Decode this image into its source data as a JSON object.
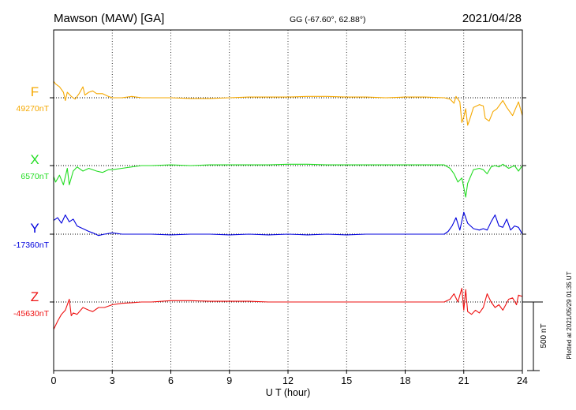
{
  "header": {
    "station": "Mawson (MAW) [GA]",
    "coords": "GG (-67.60°, 62.88°)",
    "date": "2021/04/28"
  },
  "plotted_note": "Plotted at 2021/05/29 01:35 UT",
  "chart_data": {
    "type": "line",
    "xlabel": "U T (hour)",
    "x_ticks": [
      "0",
      "3",
      "6",
      "9",
      "12",
      "15",
      "18",
      "21",
      "24"
    ],
    "xlim": [
      0,
      24
    ],
    "grid": "dotted vertical every 3 hours",
    "scale_bar": {
      "label": "500 nT",
      "value_nT": 500
    },
    "series": [
      {
        "name": "F",
        "baseline_label": "49270nT",
        "color": "#f5a800",
        "points": [
          [
            0,
            120
          ],
          [
            0.1,
            100
          ],
          [
            0.3,
            80
          ],
          [
            0.5,
            40
          ],
          [
            0.6,
            -20
          ],
          [
            0.7,
            40
          ],
          [
            0.9,
            10
          ],
          [
            1.1,
            -10
          ],
          [
            1.3,
            30
          ],
          [
            1.5,
            80
          ],
          [
            1.6,
            20
          ],
          [
            1.8,
            40
          ],
          [
            2.0,
            50
          ],
          [
            2.2,
            30
          ],
          [
            2.5,
            30
          ],
          [
            2.8,
            10
          ],
          [
            3.0,
            0
          ],
          [
            3.5,
            0
          ],
          [
            4.0,
            10
          ],
          [
            4.5,
            0
          ],
          [
            5,
            0
          ],
          [
            6,
            0
          ],
          [
            7,
            -5
          ],
          [
            8,
            -5
          ],
          [
            9,
            0
          ],
          [
            10,
            5
          ],
          [
            11,
            5
          ],
          [
            12,
            5
          ],
          [
            13,
            10
          ],
          [
            14,
            10
          ],
          [
            15,
            5
          ],
          [
            16,
            5
          ],
          [
            17,
            0
          ],
          [
            18,
            5
          ],
          [
            19,
            5
          ],
          [
            20,
            0
          ],
          [
            20.3,
            -10
          ],
          [
            20.5,
            -40
          ],
          [
            20.6,
            10
          ],
          [
            20.8,
            -30
          ],
          [
            20.9,
            -180
          ],
          [
            21.0,
            -140
          ],
          [
            21.1,
            -80
          ],
          [
            21.2,
            -200
          ],
          [
            21.3,
            -160
          ],
          [
            21.5,
            -70
          ],
          [
            21.8,
            -50
          ],
          [
            22.0,
            -60
          ],
          [
            22.1,
            -150
          ],
          [
            22.3,
            -170
          ],
          [
            22.5,
            -100
          ],
          [
            22.7,
            -80
          ],
          [
            23.0,
            -20
          ],
          [
            23.2,
            -70
          ],
          [
            23.5,
            -130
          ],
          [
            23.8,
            -30
          ],
          [
            24.0,
            -130
          ]
        ]
      },
      {
        "name": "X",
        "baseline_label": "6570nT",
        "color": "#22dd22",
        "points": [
          [
            0,
            -80
          ],
          [
            0.1,
            -120
          ],
          [
            0.3,
            -70
          ],
          [
            0.5,
            -140
          ],
          [
            0.7,
            -20
          ],
          [
            0.8,
            -140
          ],
          [
            1.0,
            -40
          ],
          [
            1.2,
            -10
          ],
          [
            1.5,
            -40
          ],
          [
            1.8,
            -20
          ],
          [
            2.2,
            -40
          ],
          [
            2.5,
            -50
          ],
          [
            2.8,
            -30
          ],
          [
            3.0,
            -30
          ],
          [
            3.5,
            -20
          ],
          [
            4.0,
            -10
          ],
          [
            4.5,
            0
          ],
          [
            5,
            0
          ],
          [
            6,
            5
          ],
          [
            7,
            0
          ],
          [
            8,
            5
          ],
          [
            9,
            5
          ],
          [
            10,
            5
          ],
          [
            11,
            5
          ],
          [
            12,
            10
          ],
          [
            13,
            10
          ],
          [
            14,
            5
          ],
          [
            15,
            5
          ],
          [
            16,
            5
          ],
          [
            17,
            5
          ],
          [
            18,
            5
          ],
          [
            19,
            5
          ],
          [
            20,
            5
          ],
          [
            20.3,
            -20
          ],
          [
            20.5,
            -60
          ],
          [
            20.7,
            -120
          ],
          [
            20.9,
            -90
          ],
          [
            21.0,
            -160
          ],
          [
            21.1,
            -230
          ],
          [
            21.2,
            -130
          ],
          [
            21.5,
            -30
          ],
          [
            21.8,
            -20
          ],
          [
            22.0,
            -30
          ],
          [
            22.2,
            -60
          ],
          [
            22.4,
            -10
          ],
          [
            22.6,
            0
          ],
          [
            22.8,
            -10
          ],
          [
            23.0,
            10
          ],
          [
            23.3,
            -20
          ],
          [
            23.6,
            0
          ],
          [
            23.8,
            -40
          ],
          [
            24.0,
            0
          ]
        ]
      },
      {
        "name": "Y",
        "baseline_label": "-17360nT",
        "color": "#0000dd",
        "points": [
          [
            0,
            100
          ],
          [
            0.2,
            120
          ],
          [
            0.4,
            80
          ],
          [
            0.6,
            140
          ],
          [
            0.8,
            90
          ],
          [
            1.0,
            110
          ],
          [
            1.2,
            60
          ],
          [
            1.5,
            40
          ],
          [
            1.8,
            20
          ],
          [
            2.0,
            10
          ],
          [
            2.3,
            -10
          ],
          [
            2.6,
            0
          ],
          [
            3.0,
            10
          ],
          [
            3.5,
            0
          ],
          [
            4.0,
            0
          ],
          [
            4.5,
            0
          ],
          [
            5,
            0
          ],
          [
            6,
            -5
          ],
          [
            7,
            0
          ],
          [
            8,
            0
          ],
          [
            9,
            -5
          ],
          [
            10,
            0
          ],
          [
            11,
            -5
          ],
          [
            12,
            0
          ],
          [
            13,
            -5
          ],
          [
            14,
            0
          ],
          [
            15,
            -5
          ],
          [
            16,
            0
          ],
          [
            17,
            0
          ],
          [
            18,
            0
          ],
          [
            19,
            0
          ],
          [
            20,
            0
          ],
          [
            20.2,
            20
          ],
          [
            20.4,
            60
          ],
          [
            20.6,
            120
          ],
          [
            20.8,
            30
          ],
          [
            21.0,
            160
          ],
          [
            21.2,
            80
          ],
          [
            21.5,
            40
          ],
          [
            21.8,
            30
          ],
          [
            22.0,
            40
          ],
          [
            22.2,
            30
          ],
          [
            22.4,
            90
          ],
          [
            22.6,
            140
          ],
          [
            22.8,
            60
          ],
          [
            23.0,
            50
          ],
          [
            23.2,
            110
          ],
          [
            23.4,
            30
          ],
          [
            23.6,
            60
          ],
          [
            23.8,
            50
          ],
          [
            24.0,
            0
          ]
        ]
      },
      {
        "name": "Z",
        "baseline_label": "-45630nT",
        "color": "#ee1111",
        "points": [
          [
            0,
            -200
          ],
          [
            0.2,
            -140
          ],
          [
            0.4,
            -90
          ],
          [
            0.6,
            -60
          ],
          [
            0.8,
            20
          ],
          [
            0.9,
            -100
          ],
          [
            1.0,
            -80
          ],
          [
            1.2,
            -90
          ],
          [
            1.5,
            -40
          ],
          [
            1.8,
            -60
          ],
          [
            2.0,
            -70
          ],
          [
            2.3,
            -40
          ],
          [
            2.6,
            -40
          ],
          [
            3.0,
            -20
          ],
          [
            3.5,
            -10
          ],
          [
            4.0,
            -5
          ],
          [
            4.5,
            0
          ],
          [
            5,
            0
          ],
          [
            6,
            10
          ],
          [
            7,
            10
          ],
          [
            8,
            5
          ],
          [
            9,
            5
          ],
          [
            10,
            5
          ],
          [
            11,
            0
          ],
          [
            12,
            0
          ],
          [
            13,
            0
          ],
          [
            14,
            0
          ],
          [
            15,
            0
          ],
          [
            16,
            0
          ],
          [
            17,
            0
          ],
          [
            18,
            0
          ],
          [
            19,
            0
          ],
          [
            20,
            0
          ],
          [
            20.3,
            20
          ],
          [
            20.5,
            60
          ],
          [
            20.7,
            0
          ],
          [
            20.9,
            100
          ],
          [
            21.0,
            -60
          ],
          [
            21.1,
            90
          ],
          [
            21.2,
            -70
          ],
          [
            21.4,
            -90
          ],
          [
            21.6,
            -60
          ],
          [
            21.8,
            -80
          ],
          [
            22.0,
            -40
          ],
          [
            22.2,
            60
          ],
          [
            22.4,
            0
          ],
          [
            22.6,
            -40
          ],
          [
            22.8,
            -20
          ],
          [
            23.0,
            -60
          ],
          [
            23.3,
            20
          ],
          [
            23.5,
            30
          ],
          [
            23.7,
            -20
          ],
          [
            23.8,
            50
          ],
          [
            24.0,
            40
          ]
        ]
      }
    ]
  }
}
